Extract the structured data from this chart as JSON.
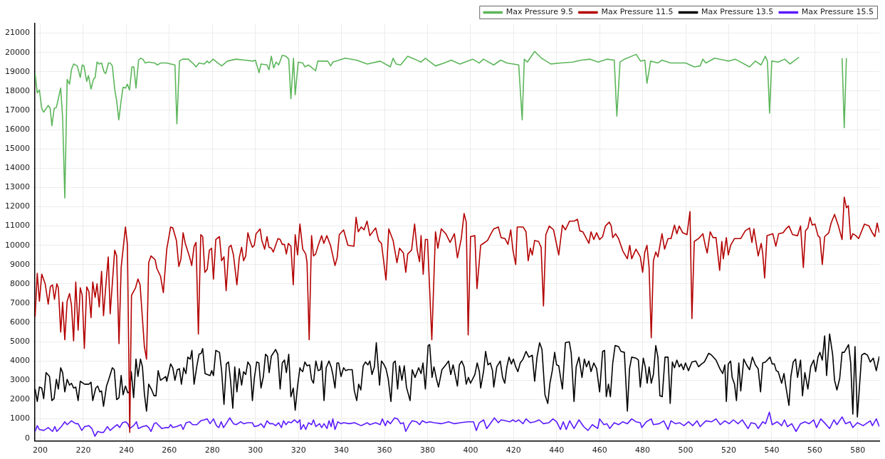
{
  "chart_data": {
    "type": "line",
    "xlim": [
      197.5,
      590
    ],
    "ylim": [
      -150,
      21500
    ],
    "xticks": [
      200,
      220,
      240,
      260,
      280,
      300,
      320,
      340,
      360,
      380,
      400,
      420,
      440,
      460,
      480,
      500,
      520,
      540,
      560,
      580
    ],
    "yticks": [
      0,
      1000,
      2000,
      3000,
      4000,
      5000,
      6000,
      7000,
      8000,
      9000,
      10000,
      11000,
      12000,
      13000,
      14000,
      15000,
      16000,
      17000,
      18000,
      19000,
      20000,
      21000
    ],
    "grid": true,
    "legend": "top right",
    "series": [
      {
        "name": "Max Pressure 9.5",
        "color": "#5cb65a",
        "x": [
          197.6,
          198.6,
          199.6,
          200.7,
          201.6,
          203.7,
          204.6,
          205.4,
          206.5,
          207.5,
          209.5,
          210.4,
          211.4,
          212.5,
          213.6,
          214.5,
          215.5,
          217.2,
          218.6,
          219.5,
          220.3,
          221.6,
          222.4,
          223.6,
          224.7,
          225.5,
          226.4,
          227.4,
          228.5,
          229.6,
          230.4,
          231.7,
          232.5,
          233.5,
          234.6,
          235.5,
          236.5,
          237.6,
          238.5,
          239.6,
          240.5,
          241.5,
          242.6,
          243.5,
          244.5,
          245.7,
          246.6,
          247.7,
          248.8,
          250.2,
          253.2,
          254.5,
          255.9,
          258.6,
          262.6,
          263.5,
          264.7,
          266.1,
          268.8,
          270.8,
          272.4,
          273.8,
          276.2,
          277.6,
          278.6,
          280.3,
          284.3,
          287,
          291,
          295,
          299,
          300,
          301.7,
          302.6,
          305.4,
          306.3,
          307.4,
          308.5,
          309.6,
          310.8,
          312.5,
          314.2,
          315.5,
          316.5,
          317.7,
          318.5,
          319.9,
          322,
          323,
          324.7,
          328,
          329,
          333.6,
          335,
          336,
          341.7,
          347,
          352,
          358,
          362.7,
          364,
          365.4,
          367.5,
          370.8,
          374,
          377,
          379,
          383.7,
          387.8,
          391,
          395,
          401,
          404,
          406,
          410.8,
          414,
          416.9,
          422.4,
          424,
          425,
          426.4,
          429.8,
          433,
          437.3,
          442,
          447.5,
          451.5,
          455.6,
          459.3,
          463.4,
          466.8,
          468,
          469.5,
          471.5,
          477,
          479,
          481,
          482,
          483.7,
          487,
          489,
          493,
          500,
          504,
          506.7,
          508,
          509.4,
          513.5,
          520,
          523,
          529.7,
          532.4,
          535,
          537,
          538,
          539,
          540,
          543,
          546,
          548.5,
          552.7,
          560,
          572.7,
          573.7,
          574.7
        ],
        "values": [
          18900,
          17900,
          18050,
          17100,
          16900,
          17250,
          17100,
          16200,
          17100,
          17150,
          18150,
          16600,
          12450,
          18600,
          18350,
          19100,
          19400,
          19300,
          18700,
          19350,
          19300,
          18500,
          18800,
          18100,
          18600,
          18700,
          19500,
          19400,
          19450,
          19000,
          18900,
          19450,
          19450,
          19300,
          18100,
          17500,
          16500,
          17500,
          18200,
          18150,
          18350,
          18050,
          19250,
          19250,
          18150,
          19600,
          19700,
          19650,
          19450,
          19500,
          19450,
          19350,
          19450,
          19450,
          19350,
          16300,
          19550,
          19650,
          19650,
          19450,
          19250,
          19450,
          19400,
          19550,
          19450,
          19650,
          19300,
          19550,
          19650,
          19600,
          19550,
          19600,
          18950,
          19400,
          19350,
          19100,
          19800,
          19200,
          19500,
          19350,
          19850,
          19800,
          19650,
          17600,
          19700,
          17800,
          19500,
          19450,
          19250,
          19350,
          19050,
          19550,
          19550,
          19300,
          19500,
          19700,
          19600,
          19400,
          19550,
          19250,
          19700,
          19400,
          19350,
          19800,
          19650,
          19500,
          19700,
          19300,
          19450,
          19600,
          19400,
          19650,
          19450,
          19650,
          19350,
          19600,
          19450,
          19350,
          16500,
          19650,
          19500,
          20050,
          19700,
          19400,
          19450,
          19500,
          19600,
          19650,
          19500,
          19650,
          19600,
          16700,
          19500,
          19650,
          19900,
          19550,
          19600,
          18400,
          19550,
          19450,
          19600,
          19450,
          19450,
          19250,
          19300,
          19650,
          19450,
          19700,
          19550,
          19650,
          19250,
          19550,
          19350,
          19800,
          19550,
          16850,
          19550,
          19500,
          19650,
          19400,
          19750,
          null,
          19700,
          16100,
          19700
        ]
      },
      {
        "name": "Max Pressure 11.5",
        "color": "#b40000",
        "x": [
          197.6,
          198.6,
          199.6,
          200.7,
          202.3,
          203.7,
          204.7,
          205.7,
          206.6,
          207.7,
          208.4,
          209.5,
          210.4,
          211.4,
          212.5,
          213.6,
          214.5,
          215.5,
          216.5,
          217.6,
          218.6,
          219.5,
          220.5,
          221.6,
          222.6,
          223.6,
          224.4,
          225.5,
          226.4,
          227.4,
          228.5,
          229.4,
          230.4,
          231.6,
          232.5,
          234.6,
          235.5,
          236.6,
          237.6,
          239.6,
          240.5,
          241.6,
          242.4,
          244.3,
          245.4,
          246.4,
          248.4,
          249.4,
          250.4,
          251.5,
          253.4,
          254.2,
          255.9,
          257.2,
          258.8,
          260.6,
          261.6,
          263.3,
          264.4,
          265.4,
          266.4,
          267.4,
          269.4,
          270.4,
          271.5,
          272.4,
          273.5,
          274.6,
          275.5,
          276.5,
          277.6,
          278.6,
          279.6,
          280.5,
          281.6,
          283.3,
          284.3,
          285.4,
          286.4,
          287.7,
          288.7,
          289.8,
          291.4,
          292.5,
          293.6,
          294.5,
          295.5,
          296.5,
          297.6,
          298.6,
          299.5,
          300.3,
          302.2,
          303,
          304.3,
          305.4,
          306.3,
          307.4,
          308.3,
          310.5,
          311.5,
          312.5,
          313.5,
          314.4,
          315.3,
          316.5,
          317.6,
          318.5,
          319.6,
          320.7,
          322,
          323.4,
          324,
          325,
          326.1,
          327,
          328,
          329.2,
          330.8,
          331.8,
          333.2,
          334.9,
          337,
          338,
          339,
          341,
          343,
          345.8,
          346.8,
          347.8,
          349.2,
          350.5,
          351.9,
          353.2,
          355.9,
          357.3,
          358.6,
          360.7,
          362,
          364,
          365.8,
          367,
          368.8,
          369.9,
          370.8,
          372.6,
          374,
          375.2,
          376.3,
          377,
          378,
          379,
          380,
          382,
          383.7,
          384.8,
          386.4,
          388.5,
          390.5,
          392.5,
          393.9,
          395.7,
          397,
          398,
          398.9,
          400,
          402,
          403,
          404.7,
          406,
          407.9,
          409.5,
          410.8,
          412.9,
          414.2,
          416,
          417.4,
          418.7,
          419.7,
          421,
          421.7,
          424.4,
          425.8,
          426.8,
          427.8,
          428.7,
          429.8,
          431.6,
          432.8,
          433.9,
          435,
          436.6,
          438.6,
          441,
          442.7,
          444.1,
          446,
          448.1,
          449.7,
          450.8,
          452.2,
          455,
          456,
          457.3,
          458.6,
          460,
          461.4,
          462.7,
          464.5,
          465.4,
          466.1,
          467.4,
          468.8,
          470.8,
          472.9,
          474,
          474.9,
          476.9,
          478.9,
          480,
          481,
          482,
          483,
          484,
          485,
          486.1,
          487.1,
          489,
          490.2,
          491.8,
          493.2,
          494.8,
          495.9,
          497,
          498.6,
          500.6,
          502,
          502.9,
          504,
          506,
          508,
          509.1,
          510,
          511.4,
          512.7,
          514.1,
          515.8,
          516.8,
          517.5,
          518.9,
          519.8,
          520.9,
          522.7,
          525.6,
          527.7,
          529.7,
          530.8,
          531.7,
          533.7,
          535.1,
          535.8,
          536.7,
          537.8,
          539.2,
          540.5,
          541.9,
          543.2,
          545.3,
          546.6,
          548,
          549.7,
          552,
          553.4,
          554.7,
          555.7,
          556.8,
          557.8,
          558.8,
          560.1,
          561.5,
          562.4,
          563.5,
          564.6,
          566.5,
          567.6,
          569.2,
          571,
          572.7,
          573.7,
          574.7,
          575.6,
          576.7,
          577.7,
          579.1,
          580.4,
          583.1,
          585.2,
          586.5,
          587.9,
          589,
          590
        ],
        "values": [
          6300,
          8550,
          7100,
          8500,
          8000,
          6950,
          7850,
          7950,
          7200,
          8000,
          7800,
          5500,
          7050,
          5100,
          7100,
          7500,
          6900,
          5050,
          8100,
          5600,
          7800,
          7400,
          4650,
          7850,
          7600,
          6250,
          8100,
          7300,
          8000,
          6800,
          8650,
          6350,
          7800,
          9400,
          6450,
          9750,
          9450,
          4900,
          8850,
          10950,
          10050,
          300,
          7400,
          7800,
          8250,
          7950,
          4750,
          4100,
          9100,
          9450,
          9250,
          8800,
          8400,
          7550,
          9800,
          10950,
          10900,
          10250,
          8900,
          9300,
          10650,
          10100,
          9400,
          8950,
          9950,
          10150,
          5400,
          10550,
          10450,
          8600,
          8750,
          9750,
          9850,
          8250,
          10300,
          10450,
          9200,
          9400,
          7650,
          9900,
          10000,
          9500,
          7950,
          9350,
          9900,
          9200,
          9450,
          10650,
          10200,
          9900,
          10000,
          10600,
          10850,
          10250,
          9800,
          10450,
          9900,
          9850,
          9650,
          10350,
          10300,
          10050,
          10050,
          9550,
          10100,
          9950,
          7950,
          10550,
          9500,
          11100,
          9800,
          9550,
          9100,
          5100,
          10500,
          9450,
          9550,
          10000,
          10500,
          10100,
          10500,
          10000,
          8950,
          9350,
          10550,
          10800,
          10000,
          9950,
          11450,
          10700,
          10950,
          10800,
          11250,
          10500,
          10900,
          10250,
          10100,
          8200,
          10850,
          10250,
          9100,
          9850,
          9600,
          8600,
          9550,
          9750,
          11100,
          9750,
          9150,
          10500,
          8500,
          10300,
          10300,
          5100,
          10700,
          9850,
          10850,
          10600,
          10150,
          10600,
          9350,
          10350,
          11650,
          11200,
          5350,
          10450,
          10500,
          7750,
          10000,
          10100,
          10250,
          10600,
          10850,
          10950,
          10400,
          10350,
          10050,
          10800,
          9750,
          9000,
          10950,
          10950,
          10700,
          9200,
          9850,
          9500,
          10250,
          10200,
          9900,
          6850,
          10550,
          11000,
          10800,
          9500,
          11050,
          10800,
          11250,
          11250,
          11350,
          10750,
          10700,
          10100,
          10700,
          10300,
          10650,
          10300,
          10450,
          11000,
          11200,
          11000,
          10400,
          10600,
          10350,
          9700,
          9300,
          10000,
          9300,
          9800,
          9400,
          8600,
          9650,
          10000,
          8850,
          5200,
          9200,
          9650,
          9400,
          10600,
          9800,
          10350,
          10350,
          11050,
          10600,
          11000,
          10650,
          10550,
          11750,
          6200,
          10200,
          10350,
          10600,
          10000,
          9600,
          10700,
          10400,
          10400,
          8700,
          10200,
          9300,
          10400,
          9500,
          10000,
          10350,
          10350,
          10750,
          10900,
          10150,
          10850,
          9450,
          10100,
          9600,
          8300,
          10500,
          10550,
          10600,
          9950,
          10600,
          10650,
          10850,
          11000,
          10550,
          10500,
          11000,
          8850,
          10750,
          10900,
          11450,
          11050,
          11100,
          10500,
          10400,
          9000,
          10450,
          10650,
          11150,
          11600,
          11000,
          10300,
          12500,
          11950,
          12050,
          10300,
          10600,
          10500,
          10350,
          11100,
          11000,
          10700,
          10450,
          11150,
          10650
        ]
      },
      {
        "name": "Max Pressure 13.5",
        "color": "#000000",
        "x": [
          197.6,
          198.6,
          199.6,
          200.7,
          201.6,
          202.7,
          204.3,
          205.4,
          206.4,
          207.5,
          208.4,
          209.5,
          210.4,
          211.4,
          212.5,
          213.6,
          214.5,
          215.5,
          216.5,
          217.6,
          218.6,
          220.6,
          222.6,
          223.6,
          224.4,
          225.8,
          226.7,
          227.7,
          228.5,
          229.4,
          230.8,
          231.7,
          233.5,
          234.4,
          235.5,
          236.6,
          237.6,
          238.5,
          239.6,
          240.7,
          241.6,
          242.3,
          243.4,
          244.5,
          245.4,
          246.6,
          247.5,
          248.4,
          249.4,
          250.4,
          251.8,
          252.9,
          253.8,
          254.8,
          255.9,
          257.2,
          258.3,
          258.8,
          260.6,
          261.6,
          262.6,
          263.7,
          264.7,
          265.6,
          266.7,
          267.7,
          268.6,
          269.7,
          270.5,
          271.5,
          272.8,
          273.8,
          274.8,
          275.5,
          276.6,
          278.9,
          279.7,
          280.5,
          281.6,
          283.3,
          284.3,
          285.4,
          286.5,
          287.5,
          288.4,
          289.5,
          290.4,
          291.4,
          292.5,
          293.6,
          294.5,
          295.5,
          296.5,
          297.6,
          298.6,
          299.5,
          300.6,
          301.6,
          302.6,
          303.7,
          304.7,
          305.6,
          306.4,
          307.4,
          309.4,
          310.4,
          311.5,
          312.5,
          313.5,
          314.4,
          315.5,
          316.5,
          317.6,
          318.5,
          319.6,
          320.7,
          321.1,
          322,
          323,
          324,
          325.2,
          326.1,
          327,
          328.1,
          329.2,
          330.2,
          330.8,
          331.9,
          332.9,
          334.2,
          335.2,
          336,
          337,
          337.9,
          338.7,
          339.8,
          341,
          342,
          343,
          345,
          346,
          347.1,
          348,
          349,
          350.1,
          351.2,
          352.3,
          353.2,
          354.2,
          355.3,
          356.2,
          357.7,
          358.6,
          359.6,
          360.7,
          361.7,
          363,
          364.1,
          365,
          366.1,
          367,
          368.1,
          369.2,
          370.2,
          371.9,
          372.9,
          374.2,
          375.9,
          377,
          377.9,
          379,
          380.3,
          381,
          382.1,
          383,
          384.1,
          385.1,
          386.7,
          388.5,
          389.8,
          390.8,
          391.9,
          393.9,
          394.8,
          395.9,
          397,
          398,
          399,
          400,
          402,
          403.1,
          404.1,
          404.7,
          406.1,
          407,
          408.1,
          409.2,
          410.2,
          410.8,
          412.2,
          413.8,
          414.9,
          415.9,
          416.9,
          417.9,
          419,
          419.9,
          421,
          422,
          423.1,
          424.4,
          425.8,
          427.1,
          428.7,
          429.8,
          430.9,
          432.1,
          433.2,
          434.6,
          435.9,
          436.9,
          438,
          439.1,
          440,
          441,
          442.7,
          444.1,
          445.9,
          446.8,
          448.1,
          449.1,
          450.4,
          451.8,
          452.9,
          453.9,
          455,
          456,
          457.3,
          458.6,
          460,
          461.4,
          462.3,
          463.1,
          464.1,
          465,
          466.1,
          467.2,
          468.8,
          469.9,
          471.5,
          472.9,
          473.9,
          474.9,
          476.9,
          478,
          478.9,
          480.3,
          481.2,
          482.1,
          483,
          484,
          485,
          486.1,
          487.1,
          488,
          489.1,
          490.4,
          491.8,
          492.8,
          493.8,
          494.8,
          495.9,
          497,
          497.9,
          499,
          499.9,
          501.3,
          502.9,
          504.7,
          506,
          507.4,
          508.7,
          510.7,
          512.1,
          514.1,
          515.9,
          517.2,
          518.2,
          518.9,
          519.8,
          520.9,
          521.6,
          522.7,
          523.6,
          524.7,
          525.6,
          527,
          528.3,
          529.7,
          531,
          532.4,
          533.7,
          534.8,
          535.8,
          537.1,
          539.2,
          540.2,
          541.2,
          542.1,
          543,
          544.6,
          545.7,
          546.6,
          548,
          548.9,
          550,
          551.1,
          552,
          553.4,
          554.3,
          555.4,
          556.8,
          558.1,
          559.5,
          560.4,
          561.5,
          562.4,
          563.5,
          564.6,
          565.5,
          566.9,
          568.3,
          569.2,
          570.3,
          571.6,
          572.7,
          573.7,
          575.7,
          576.7,
          577.7,
          578.7,
          579.8,
          581.8,
          583.1,
          584.5,
          585.8,
          587.2,
          588.6,
          590
        ],
        "values": [
          2550,
          1900,
          2650,
          2600,
          2050,
          3400,
          3200,
          1950,
          2050,
          3050,
          2550,
          3650,
          3400,
          2400,
          3050,
          2750,
          2850,
          2600,
          2650,
          1950,
          2950,
          2800,
          2800,
          2900,
          1950,
          2600,
          2700,
          2400,
          2450,
          1650,
          2700,
          3000,
          3650,
          3550,
          2000,
          2100,
          3250,
          2250,
          2700,
          2350,
          2400,
          3450,
          2100,
          4100,
          3200,
          4100,
          3700,
          2300,
          1400,
          2800,
          2500,
          2200,
          2200,
          3500,
          3000,
          3100,
          3200,
          2950,
          3850,
          3650,
          3000,
          3550,
          3600,
          2800,
          3650,
          3350,
          4200,
          4100,
          4550,
          2800,
          3750,
          4350,
          4400,
          4650,
          3350,
          3250,
          3500,
          3250,
          4550,
          4450,
          3500,
          1750,
          3850,
          3950,
          3050,
          1550,
          3700,
          2400,
          3600,
          2750,
          3450,
          3300,
          3950,
          3750,
          1950,
          3100,
          3950,
          3900,
          2600,
          3200,
          4350,
          4250,
          3400,
          4250,
          4600,
          4350,
          2550,
          3900,
          4050,
          3400,
          4350,
          2150,
          2600,
          1450,
          2700,
          3650,
          3550,
          3450,
          3950,
          3750,
          3800,
          3050,
          2850,
          4000,
          3500,
          3550,
          4000,
          1950,
          3650,
          4000,
          3700,
          3300,
          2600,
          3900,
          3900,
          3200,
          3650,
          3500,
          3550,
          3550,
          2450,
          1950,
          2800,
          2500,
          3750,
          3950,
          3800,
          4000,
          3300,
          3700,
          4950,
          2750,
          4000,
          3850,
          3600,
          3100,
          1900,
          3900,
          4000,
          2550,
          3750,
          3000,
          3750,
          2650,
          1950,
          3550,
          3150,
          3650,
          3350,
          3900,
          2550,
          4800,
          4850,
          3150,
          3700,
          3100,
          2650,
          3550,
          3800,
          4000,
          3300,
          3800,
          2700,
          3800,
          4000,
          3700,
          2800,
          3150,
          2850,
          3300,
          3900,
          3450,
          2600,
          3500,
          4500,
          3800,
          3900,
          3500,
          2650,
          3700,
          4000,
          3150,
          2850,
          3700,
          4200,
          3850,
          4100,
          3700,
          3450,
          3900,
          4100,
          4500,
          4200,
          4300,
          2950,
          4200,
          4950,
          4600,
          2250,
          1800,
          2850,
          3500,
          4450,
          3800,
          3750,
          2550,
          4950,
          5000,
          4400,
          1900,
          3700,
          4200,
          3150,
          4100,
          3700,
          4000,
          3450,
          3900,
          3600,
          2400,
          4500,
          4550,
          2150,
          2800,
          2150,
          3900,
          4800,
          4750,
          4500,
          4450,
          1400,
          3600,
          4200,
          4150,
          4050,
          2650,
          4150,
          3700,
          2850,
          3700,
          2850,
          3300,
          4800,
          4200,
          2200,
          2150,
          4200,
          4200,
          1800,
          3950,
          3650,
          4050,
          3700,
          3850,
          3550,
          3900,
          3500,
          3950,
          4000,
          3700,
          3850,
          3950,
          4400,
          4300,
          4050,
          3600,
          3350,
          3800,
          1900,
          3850,
          4000,
          3150,
          2800,
          1950,
          3900,
          2450,
          4100,
          3800,
          3550,
          4200,
          3800,
          3600,
          2400,
          3900,
          3950,
          4200,
          3850,
          3850,
          3500,
          3450,
          2850,
          3350,
          2650,
          1700,
          3200,
          3950,
          4100,
          3150,
          4050,
          2200,
          3400,
          2550,
          3700,
          4050,
          3450,
          4200,
          4450,
          4050,
          5300,
          3250,
          5400,
          4350,
          3000,
          2500,
          3100,
          4450,
          4450,
          4850,
          3900,
          1250,
          4750,
          1100,
          4300,
          4400,
          4300,
          3950,
          4150,
          3500,
          4250
        ]
      },
      {
        "name": "Max Pressure 15.5",
        "color": "#5b1aff",
        "x": [
          197.6,
          198.6,
          199.6,
          201.6,
          203.7,
          205.7,
          206.8,
          207.7,
          209.8,
          211.4,
          212.5,
          214.5,
          216.5,
          217.6,
          219.3,
          220.6,
          222.6,
          224,
          225.4,
          226.7,
          228.1,
          229.4,
          231.2,
          232.5,
          234.6,
          235.8,
          236.9,
          238.2,
          239.6,
          240.7,
          241.6,
          243.4,
          244.7,
          245.6,
          247.5,
          249.4,
          250.4,
          251.5,
          252.9,
          253.8,
          256.5,
          258.3,
          259.7,
          260.6,
          261.6,
          263.3,
          265.4,
          266.4,
          267.8,
          269.4,
          270.8,
          272.8,
          274.6,
          276.2,
          277.6,
          278.9,
          280.5,
          281.9,
          283,
          284.1,
          285.2,
          286.4,
          288.1,
          289.8,
          291.1,
          293.2,
          294.5,
          296.5,
          298.6,
          299.5,
          301.3,
          302.6,
          304,
          305.4,
          306.7,
          308.1,
          309.4,
          310.8,
          312.1,
          313.1,
          314.2,
          315.3,
          316.6,
          318.2,
          319.6,
          320.7,
          321.1,
          322.4,
          323.4,
          324.7,
          326.1,
          327,
          328.1,
          329.8,
          330.8,
          331.9,
          333.3,
          334.2,
          335.2,
          336,
          337,
          338.3,
          339.7,
          341,
          343.7,
          346,
          349.2,
          352,
          353.2,
          355.9,
          358,
          359,
          360.4,
          361.4,
          362.7,
          364.7,
          366.1,
          367.5,
          368.8,
          369.9,
          371.5,
          372.9,
          374.9,
          376.3,
          377.6,
          379.4,
          381,
          383.1,
          386.4,
          389.8,
          392.5,
          395.3,
          398.6,
          401.4,
          402.7,
          404.1,
          406.1,
          407.5,
          409.5,
          411.1,
          412.9,
          414.2,
          416.3,
          418.3,
          419.7,
          421,
          422.4,
          424.4,
          425.8,
          427.8,
          429.8,
          431.9,
          433.9,
          436.4,
          438.3,
          440,
          441.8,
          443.1,
          444.5,
          446.1,
          448.1,
          450.4,
          452.6,
          454.6,
          456.6,
          459.1,
          460,
          462,
          463.4,
          464.7,
          466.8,
          468.8,
          470.8,
          472.9,
          474.9,
          476.9,
          478.9,
          479.6,
          481.7,
          484,
          485,
          487.7,
          489.8,
          491.8,
          493.2,
          495.2,
          497.2,
          499.2,
          501.3,
          503.3,
          505.3,
          506.7,
          509.4,
          512.1,
          514.1,
          516.1,
          518.2,
          520.2,
          522.2,
          524.3,
          526.3,
          529,
          530.4,
          532.4,
          533.7,
          535.8,
          537.1,
          538.9,
          540.2,
          542.5,
          544.6,
          545.9,
          547.3,
          549.3,
          551.3,
          553.4,
          555.4,
          557.4,
          559.5,
          560.8,
          562.8,
          564.9,
          566.9,
          568.9,
          570.3,
          572.7,
          574.3,
          576.4,
          577.7,
          579.8,
          582.5,
          585.8,
          586.8,
          588.6,
          590
        ],
        "values": [
          350,
          650,
          450,
          400,
          550,
          350,
          600,
          350,
          600,
          850,
          700,
          900,
          750,
          750,
          400,
          600,
          650,
          500,
          100,
          350,
          300,
          300,
          600,
          400,
          600,
          700,
          550,
          800,
          850,
          750,
          500,
          650,
          850,
          500,
          600,
          650,
          550,
          350,
          750,
          800,
          500,
          550,
          550,
          700,
          550,
          600,
          700,
          450,
          800,
          850,
          700,
          700,
          900,
          950,
          1000,
          750,
          1000,
          650,
          550,
          850,
          550,
          750,
          1050,
          750,
          700,
          850,
          750,
          800,
          800,
          600,
          650,
          750,
          550,
          900,
          750,
          750,
          650,
          800,
          550,
          900,
          700,
          850,
          800,
          950,
          800,
          950,
          450,
          700,
          450,
          800,
          700,
          950,
          600,
          750,
          550,
          750,
          500,
          900,
          600,
          1000,
          450,
          850,
          750,
          800,
          750,
          800,
          650,
          800,
          700,
          800,
          700,
          1000,
          650,
          900,
          750,
          1050,
          1000,
          750,
          800,
          350,
          700,
          900,
          850,
          700,
          900,
          800,
          850,
          800,
          750,
          850,
          750,
          800,
          850,
          850,
          400,
          800,
          950,
          500,
          800,
          1050,
          800,
          950,
          900,
          850,
          950,
          850,
          950,
          750,
          1000,
          800,
          850,
          950,
          750,
          800,
          1000,
          850,
          450,
          850,
          450,
          900,
          500,
          950,
          600,
          400,
          700,
          500,
          1000,
          700,
          750,
          500,
          800,
          700,
          850,
          750,
          1000,
          850,
          800,
          550,
          850,
          1000,
          700,
          750,
          900,
          450,
          900,
          750,
          800,
          650,
          850,
          650,
          900,
          600,
          900,
          850,
          1000,
          700,
          900,
          750,
          950,
          750,
          950,
          500,
          800,
          750,
          500,
          850,
          750,
          1350,
          700,
          850,
          650,
          950,
          600,
          750,
          350,
          750,
          850,
          750,
          950,
          550,
          1000,
          750,
          500,
          950,
          700,
          1100,
          750,
          850,
          550,
          800,
          650,
          900,
          650,
          1000,
          600
        ]
      }
    ]
  }
}
